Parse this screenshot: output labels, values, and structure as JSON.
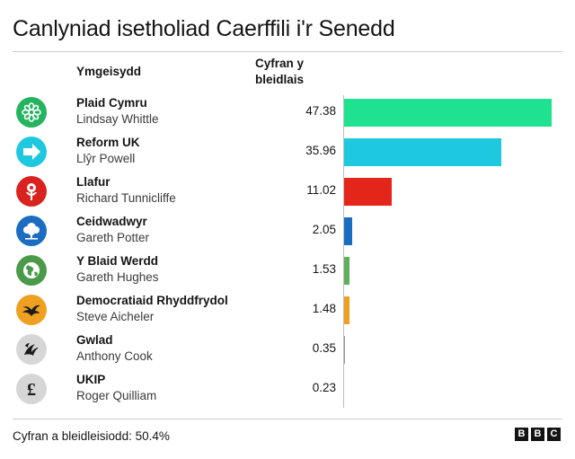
{
  "title": "Canlyniad isetholiad Caerffili i'r Senedd",
  "headers": {
    "candidate": "Ymgeisydd",
    "share": "Cyfran y bleidlais"
  },
  "footer": "Cyfran a bleidleisiodd: 50.4%",
  "brand": [
    "B",
    "B",
    "C"
  ],
  "chart_data": {
    "type": "bar",
    "orientation": "horizontal",
    "title": "Canlyniad isetholiad Caerffili i'r Senedd",
    "value_label": "Cyfran y bleidlais",
    "xlim": [
      0,
      50
    ],
    "categories": [
      "Plaid Cymru",
      "Reform UK",
      "Llafur",
      "Ceidwadwyr",
      "Y Blaid Werdd",
      "Democratiaid Rhyddfrydol",
      "Gwlad",
      "UKIP"
    ],
    "candidates": [
      "Lindsay Whittle",
      "Llŷr Powell",
      "Richard Tunnicliffe",
      "Gareth Potter",
      "Gareth Hughes",
      "Steve Aicheler",
      "Anthony Cook",
      "Roger Quilliam"
    ],
    "values": [
      47.38,
      35.96,
      11.02,
      2.05,
      1.53,
      1.48,
      0.35,
      0.23
    ],
    "value_labels": [
      "47.38",
      "35.96",
      "11.02",
      "2.05",
      "1.53",
      "1.48",
      "0.35",
      "0.23"
    ],
    "colors": [
      "#1ee28f",
      "#1ec9e0",
      "#e4251a",
      "#1b6dc1",
      "#5fb05a",
      "#f0a021",
      "#9a9a9a",
      "#7a4a9a"
    ],
    "logo_colors": [
      "#24b35f",
      "#1ec9e0",
      "#d8231e",
      "#1b6dc1",
      "#4a9a4a",
      "#f0a021",
      "#d6d6d6",
      "#d6d6d6"
    ],
    "icons": [
      "plaid-flower-icon",
      "reform-arrow-icon",
      "labour-rose-icon",
      "conservative-tree-icon",
      "green-globe-icon",
      "libdem-bird-icon",
      "gwlad-dragon-icon",
      "ukip-pound-icon"
    ],
    "grid": false,
    "legend": "none"
  }
}
